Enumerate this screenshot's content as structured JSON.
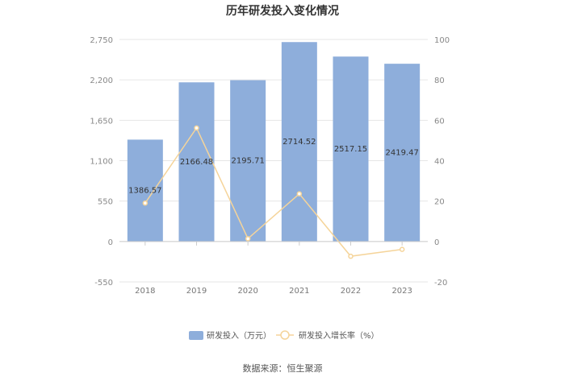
{
  "chart_data": {
    "type": "bar",
    "title": "历年研发投入变化情况",
    "categories": [
      "2018",
      "2019",
      "2020",
      "2021",
      "2022",
      "2023"
    ],
    "series": [
      {
        "name": "研发投入（万元）",
        "type": "bar",
        "axis": "left",
        "color": "#8eaedb",
        "values": [
          1386.57,
          2166.48,
          2195.71,
          2714.52,
          2517.15,
          2419.47
        ],
        "labels": [
          "1386.57",
          "2166.48",
          "2195.71",
          "2714.52",
          "2517.15",
          "2419.47"
        ]
      },
      {
        "name": "研发投入增长率（%）",
        "type": "line",
        "axis": "right",
        "color": "#f5d49a",
        "values": [
          19.0,
          56.2,
          1.4,
          23.6,
          -7.3,
          -3.9
        ]
      }
    ],
    "y_left": {
      "min": -550,
      "max": 2750,
      "ticks": [
        "2,750",
        "2,200",
        "1,650",
        "1,100",
        "550",
        "0",
        "-550"
      ],
      "tick_values": [
        2750,
        2200,
        1650,
        1100,
        550,
        0,
        -550
      ]
    },
    "y_right": {
      "min": -20,
      "max": 100,
      "ticks": [
        "100",
        "80",
        "60",
        "40",
        "20",
        "0",
        "-20"
      ],
      "tick_values": [
        100,
        80,
        60,
        40,
        20,
        0,
        -20
      ]
    },
    "grid": true,
    "legend_position": "bottom",
    "source": "数据来源：恒生聚源"
  }
}
